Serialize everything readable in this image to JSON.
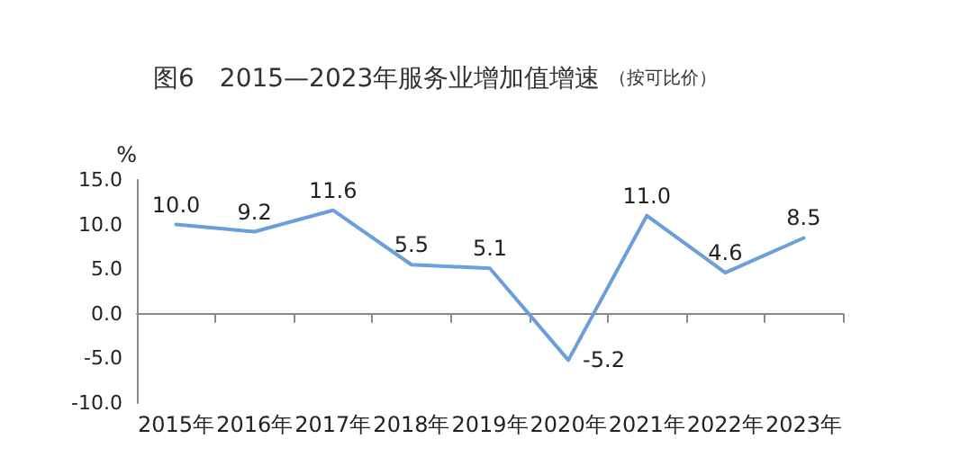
{
  "chart_data": {
    "type": "line",
    "title": "图6　2015—2023年服务业增加值增速",
    "subtitle": "（按可比价）",
    "ylabel": "%",
    "categories": [
      "2015年",
      "2016年",
      "2017年",
      "2018年",
      "2019年",
      "2020年",
      "2021年",
      "2022年",
      "2023年"
    ],
    "series": [
      {
        "color": "#6a9fdc",
        "values": [
          10.0,
          9.2,
          11.6,
          5.5,
          5.1,
          -5.2,
          11.0,
          4.6,
          8.5
        ],
        "value_labels": [
          "10.0",
          "9.2",
          "11.6",
          "5.5",
          "5.1",
          "-5.2",
          "11.0",
          "4.6",
          "8.5"
        ]
      }
    ],
    "ylim": [
      -10,
      15
    ],
    "yticks": [
      {
        "value": -10,
        "label": "-10.0"
      },
      {
        "value": -5,
        "label": "-5.0"
      },
      {
        "value": 0,
        "label": "0.0"
      },
      {
        "value": 5,
        "label": "5.0"
      },
      {
        "value": 10,
        "label": "10.0"
      },
      {
        "value": 15,
        "label": "15.0"
      }
    ],
    "marker": "none",
    "line_style": "solid"
  }
}
